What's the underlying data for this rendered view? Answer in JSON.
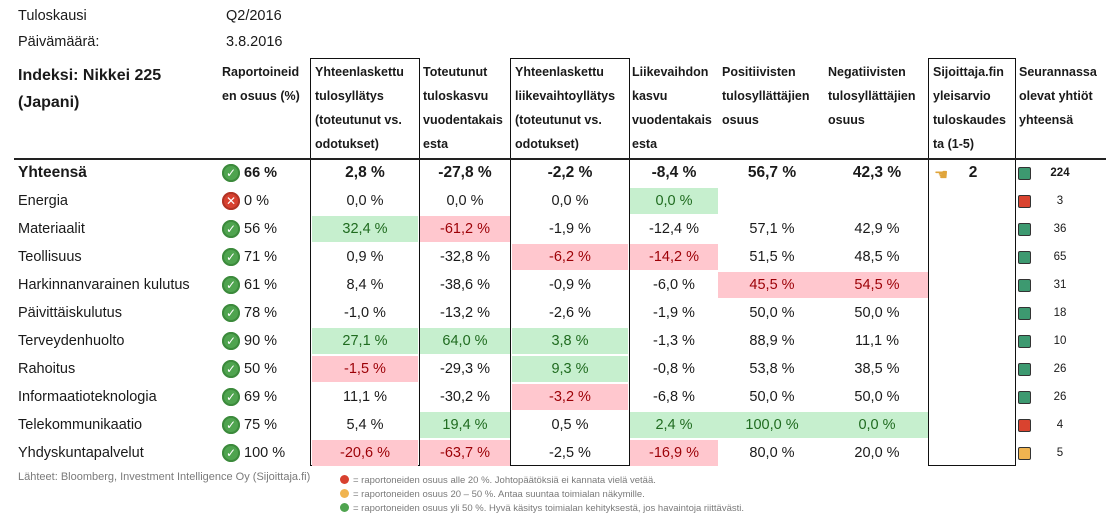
{
  "meta": {
    "period_label": "Tuloskausi",
    "period_value": "Q2/2016",
    "date_label": "Päivämäärä:",
    "date_value": "3.8.2016"
  },
  "header": {
    "index": "Indeksi: Nikkei 225\n(Japani)",
    "reported": "Raportoineid\nen osuus (%)",
    "eps_surprise": "Yhteenlaskettu\ntulosyllätys\n(toteutunut vs.\nodotukset)",
    "eps_growth": "Toteutunut\ntuloskasvu\nvuodentakais\nesta",
    "rev_surprise": "Yhteenlaskettu\nliikevaihtoyllätys\n(toteutunut vs.\nodotukset)",
    "rev_growth": "Liikevaihdon\nkasvu\nvuodentakais\nesta",
    "positive": "Positiivisten\ntulosyllättäjien\nosuus",
    "negative": "Negatiivisten\ntulosyllättäjien\nosuus",
    "outlook": "Sijoittaja.fin\nyleisarvio\ntuloskaudes\nta (1-5)",
    "count": "Seurannassa\nolevat yhtiöt\nyhteensä"
  },
  "summary": {
    "name": "Yhteensä",
    "reported": "66 %",
    "eps_surprise": "2,8 %",
    "eps_growth": "-27,8 %",
    "rev_surprise": "-2,2 %",
    "rev_growth": "-8,4 %",
    "positive": "56,7 %",
    "negative": "42,3 %",
    "outlook": "2",
    "count": "224",
    "status": "green"
  },
  "rows": [
    {
      "name": "Energia",
      "reported": "0 %",
      "status": "red",
      "eps_surprise": "0,0 %",
      "eps_growth": "0,0 %",
      "rev_surprise": "0,0 %",
      "rev_growth": "0,0 %",
      "positive": "",
      "negative": "",
      "count": "3",
      "count_status": "red"
    },
    {
      "name": "Materiaalit",
      "reported": "56 %",
      "status": "green",
      "eps_surprise": "32,4 %",
      "eps_growth": "-61,2 %",
      "rev_surprise": "-1,9 %",
      "rev_growth": "-12,4 %",
      "positive": "57,1 %",
      "negative": "42,9 %",
      "count": "36",
      "count_status": "green"
    },
    {
      "name": "Teollisuus",
      "reported": "71 %",
      "status": "green",
      "eps_surprise": "0,9 %",
      "eps_growth": "-32,8 %",
      "rev_surprise": "-6,2 %",
      "rev_growth": "-14,2 %",
      "positive": "51,5 %",
      "negative": "48,5 %",
      "count": "65",
      "count_status": "green"
    },
    {
      "name": "Harkinnanvarainen kulutus",
      "reported": "61 %",
      "status": "green",
      "eps_surprise": "8,4 %",
      "eps_growth": "-38,6 %",
      "rev_surprise": "-0,9 %",
      "rev_growth": "-6,0 %",
      "positive": "45,5 %",
      "negative": "54,5 %",
      "count": "31",
      "count_status": "green"
    },
    {
      "name": "Päivittäiskulutus",
      "reported": "78 %",
      "status": "green",
      "eps_surprise": "-1,0 %",
      "eps_growth": "-13,2 %",
      "rev_surprise": "-2,6 %",
      "rev_growth": "-1,9 %",
      "positive": "50,0 %",
      "negative": "50,0 %",
      "count": "18",
      "count_status": "green"
    },
    {
      "name": "Terveydenhuolto",
      "reported": "90 %",
      "status": "green",
      "eps_surprise": "27,1 %",
      "eps_growth": "64,0 %",
      "rev_surprise": "3,8 %",
      "rev_growth": "-1,3 %",
      "positive": "88,9 %",
      "negative": "11,1 %",
      "count": "10",
      "count_status": "green"
    },
    {
      "name": "Rahoitus",
      "reported": "50 %",
      "status": "green",
      "eps_surprise": "-1,5 %",
      "eps_growth": "-29,3 %",
      "rev_surprise": "9,3 %",
      "rev_growth": "-0,8 %",
      "positive": "53,8 %",
      "negative": "38,5 %",
      "count": "26",
      "count_status": "green"
    },
    {
      "name": "Informaatioteknologia",
      "reported": "69 %",
      "status": "green",
      "eps_surprise": "11,1 %",
      "eps_growth": "-30,2 %",
      "rev_surprise": "-3,2 %",
      "rev_growth": "-6,8 %",
      "positive": "50,0 %",
      "negative": "50,0 %",
      "count": "26",
      "count_status": "green"
    },
    {
      "name": "Telekommunikaatio",
      "reported": "75 %",
      "status": "green",
      "eps_surprise": "5,4 %",
      "eps_growth": "19,4 %",
      "rev_surprise": "0,5 %",
      "rev_growth": "2,4 %",
      "positive": "100,0 %",
      "negative": "0,0 %",
      "count": "4",
      "count_status": "red"
    },
    {
      "name": "Yhdyskuntapalvelut",
      "reported": "100 %",
      "status": "green",
      "eps_surprise": "-20,6 %",
      "eps_growth": "-63,7 %",
      "rev_surprise": "-2,5 %",
      "rev_growth": "-16,9 %",
      "positive": "80,0 %",
      "negative": "20,0 %",
      "count": "5",
      "count_status": "orange"
    }
  ],
  "highlights": {
    "green": [
      "0.rev_growth",
      "1.eps_surprise",
      "5.eps_surprise",
      "5.eps_growth",
      "5.rev_surprise",
      "6.rev_surprise",
      "8.eps_growth",
      "8.rev_growth",
      "8.positive",
      "8.negative"
    ],
    "red": [
      "1.eps_growth",
      "2.rev_surprise",
      "2.rev_growth",
      "3.positive",
      "3.negative",
      "6.eps_surprise",
      "7.rev_surprise",
      "9.eps_surprise",
      "9.eps_growth",
      "9.rev_growth"
    ]
  },
  "footer": {
    "source": "Lähteet: Bloomberg, Investment Intelligence Oy (Sijoittaja.fi)",
    "legend": [
      {
        "color": "#d8412f",
        "text": "= raportoneiden osuus alle 20 %. Johtopäätöksiä ei kannata vielä vetää."
      },
      {
        "color": "#f0b450",
        "text": "= raportoneiden osuus 20 – 50 %. Antaa suuntaa toimialan näkymille."
      },
      {
        "color": "#4fa44f",
        "text": "= raportoneiden osuus yli 50 %. Hyvä käsitys toimialan kehityksestä, jos havaintoja riittävästi."
      }
    ]
  },
  "colors": {
    "green_bg": "#c6efce",
    "green_text": "#1f6b1f",
    "red_bg": "#ffc7ce",
    "red_text": "#9c0006"
  }
}
